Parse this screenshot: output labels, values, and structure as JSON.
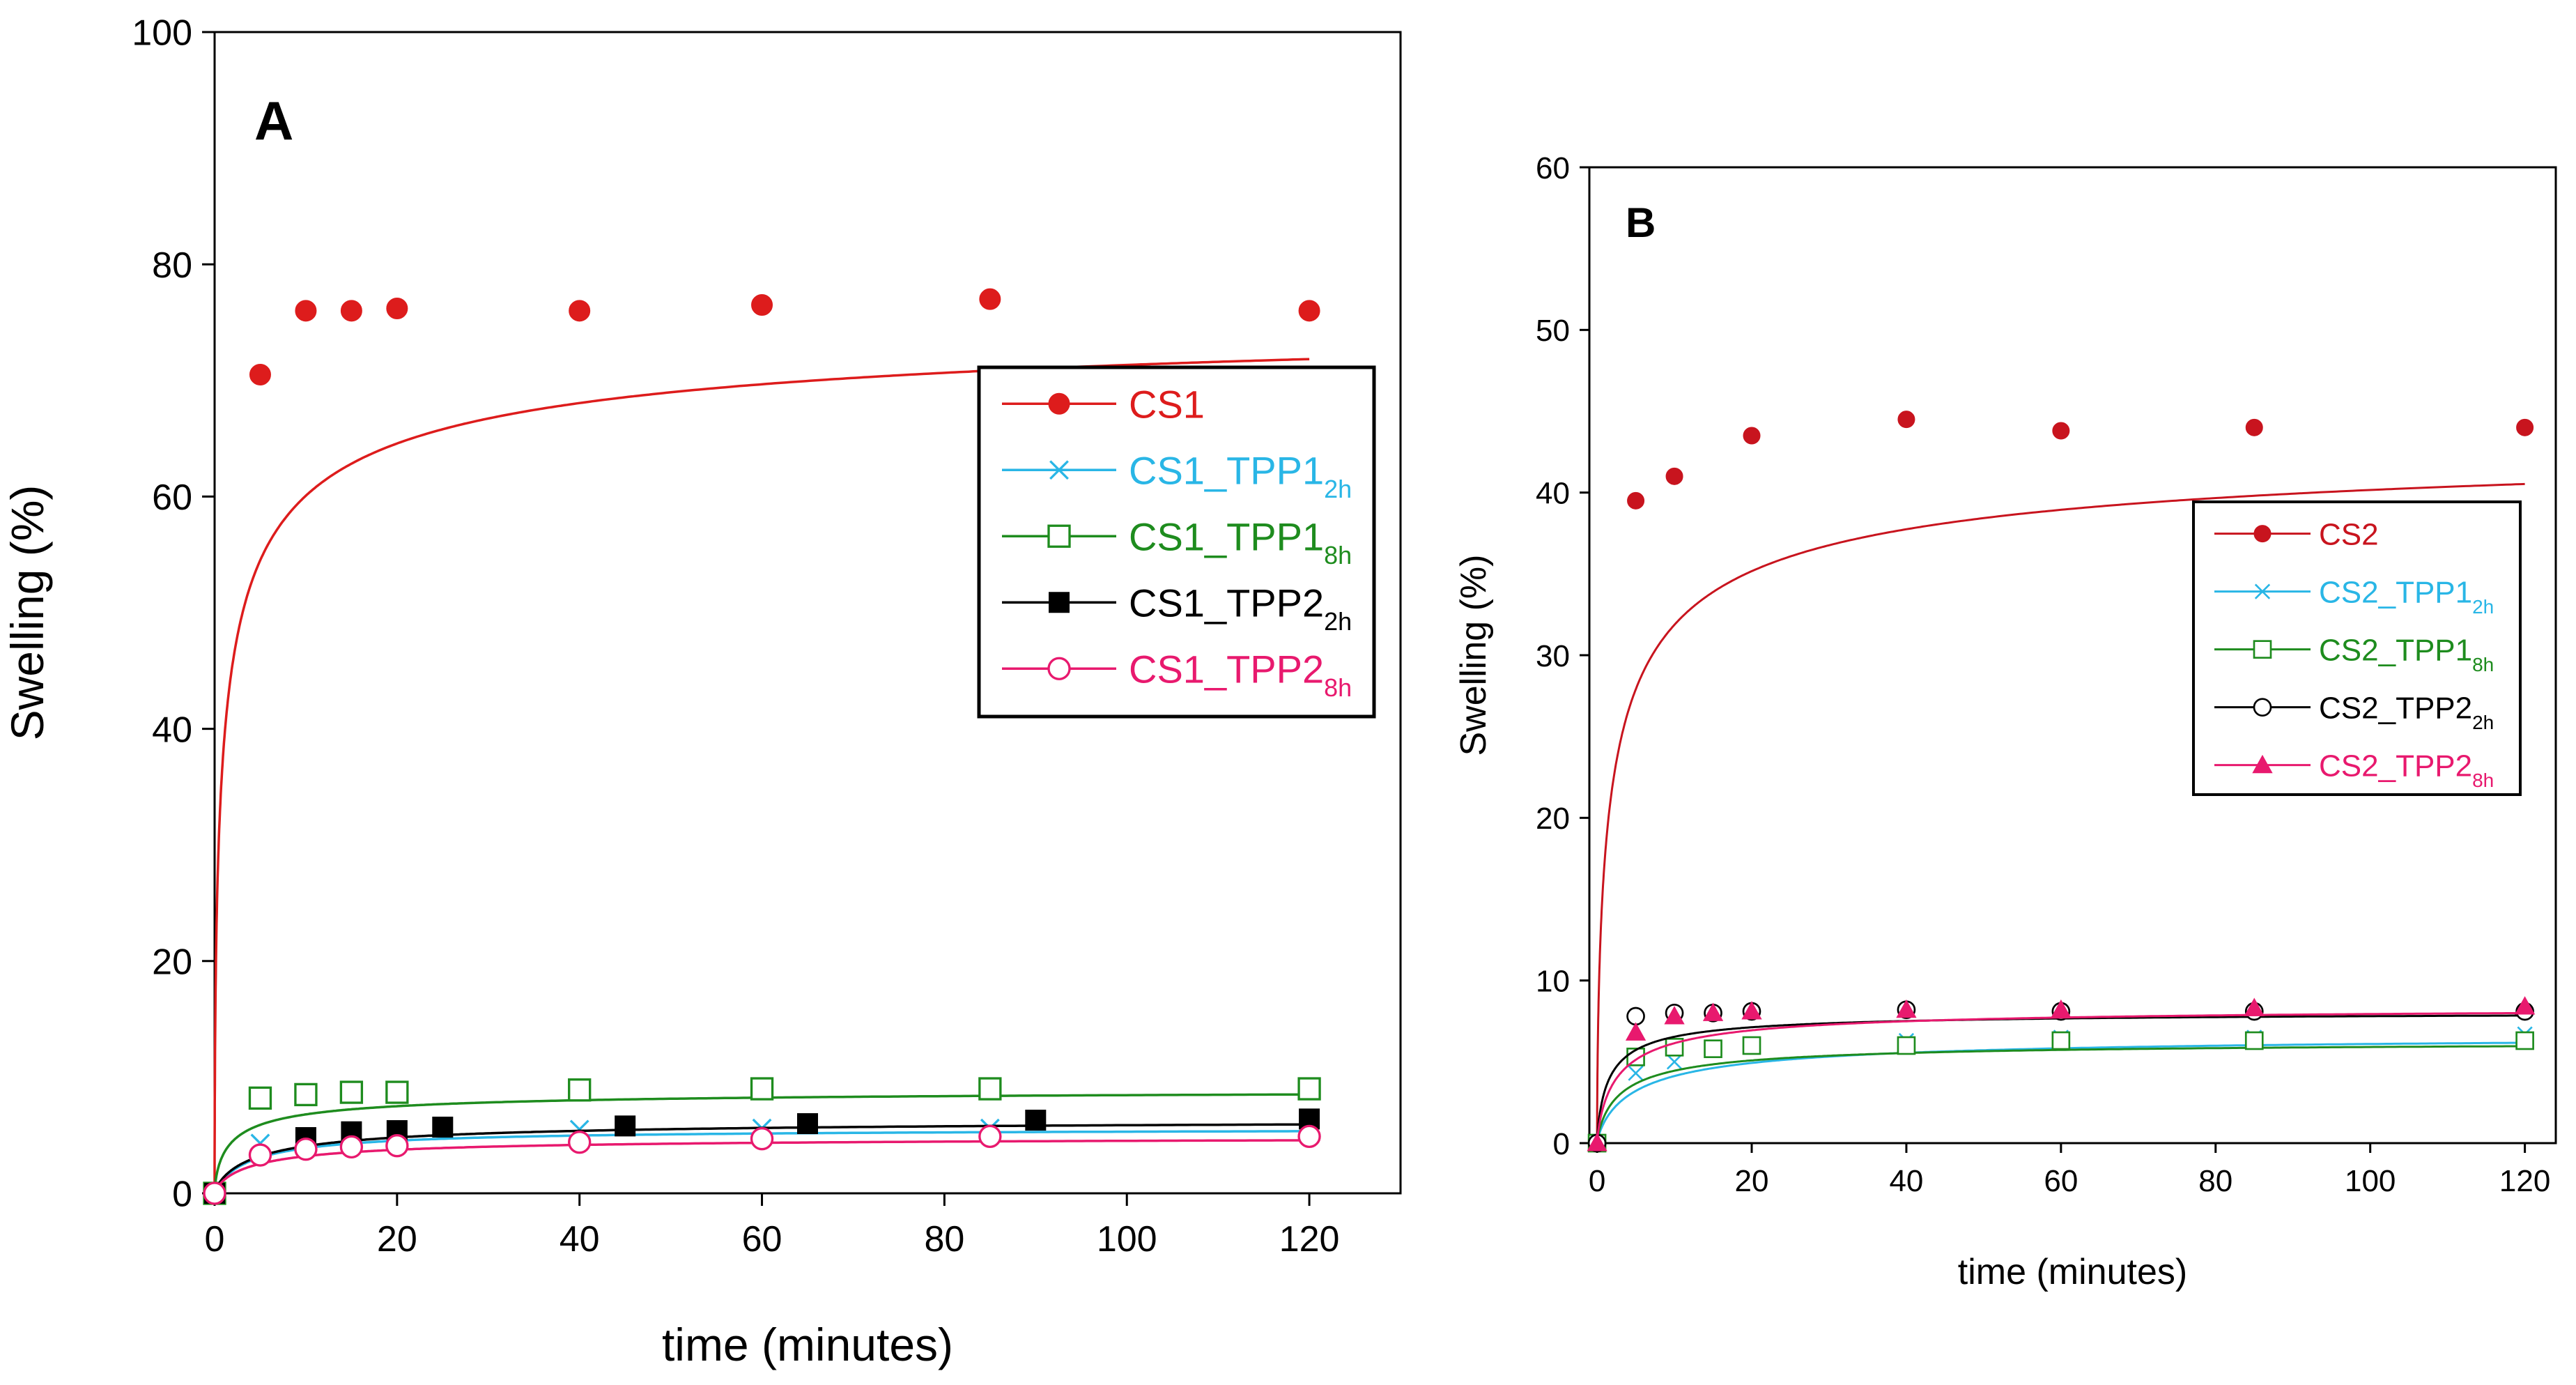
{
  "chart_data": [
    {
      "type": "line",
      "panel_label": "A",
      "xlabel": "time (minutes)",
      "ylabel": "Swelling (%)",
      "xlim": [
        0,
        130
      ],
      "ylim": [
        0,
        100
      ],
      "xticks": [
        0,
        20,
        40,
        60,
        80,
        100,
        120
      ],
      "yticks": [
        0,
        20,
        40,
        60,
        80,
        100
      ],
      "grid": false,
      "legend_position": "right-middle",
      "series": [
        {
          "name": "CS1",
          "name_base": "CS1",
          "name_sub": "",
          "color": "#dd1c1c",
          "marker": "filled-circle",
          "x": [
            0,
            5,
            10,
            15,
            20,
            40,
            60,
            85,
            120
          ],
          "y": [
            0,
            70.5,
            76,
            76,
            76.2,
            76,
            76.5,
            77,
            76
          ],
          "fit": {
            "plateau": 77,
            "k": 1.0,
            "shape": 0.55
          }
        },
        {
          "name": "CS1_TPP1 2h",
          "name_base": "CS1_TPP1",
          "name_sub": "2h",
          "color": "#29b6e6",
          "marker": "x",
          "x": [
            0,
            5,
            10,
            15,
            20,
            40,
            60,
            85,
            120
          ],
          "y": [
            0,
            4.3,
            4.8,
            5.0,
            5.2,
            5.5,
            5.6,
            5.6,
            5.6
          ],
          "fit": {
            "plateau": 5.6,
            "k": 0.25,
            "shape": 0.9
          }
        },
        {
          "name": "CS1_TPP1 8h",
          "name_base": "CS1_TPP1",
          "name_sub": "8h",
          "color": "#1e8c1e",
          "marker": "open-square",
          "x": [
            0,
            5,
            10,
            15,
            20,
            40,
            60,
            85,
            120
          ],
          "y": [
            0,
            8.2,
            8.5,
            8.7,
            8.7,
            8.9,
            9.0,
            9.0,
            9.0
          ],
          "fit": {
            "plateau": 9.0,
            "k": 0.5,
            "shape": 0.7
          }
        },
        {
          "name": "CS1_TPP2 2h",
          "name_base": "CS1_TPP2",
          "name_sub": "2h",
          "color": "#000000",
          "marker": "filled-square",
          "x": [
            0,
            10,
            15,
            20,
            25,
            45,
            65,
            90,
            120
          ],
          "y": [
            0,
            4.8,
            5.3,
            5.4,
            5.7,
            5.8,
            6.0,
            6.3,
            6.4
          ],
          "fit": {
            "plateau": 6.4,
            "k": 0.2,
            "shape": 0.8
          }
        },
        {
          "name": "CS1_TPP2 8h",
          "name_base": "CS1_TPP2",
          "name_sub": "8h",
          "color": "#e8196e",
          "marker": "open-circle",
          "x": [
            0,
            5,
            10,
            15,
            20,
            40,
            60,
            85,
            120
          ],
          "y": [
            0,
            3.3,
            3.8,
            4.0,
            4.1,
            4.4,
            4.7,
            4.9,
            4.9
          ],
          "fit": {
            "plateau": 4.9,
            "k": 0.22,
            "shape": 0.8
          }
        }
      ]
    },
    {
      "type": "line",
      "panel_label": "B",
      "xlabel": "time (minutes)",
      "ylabel": "Swelling (%)",
      "xlim": [
        -1,
        124
      ],
      "ylim": [
        0,
        60
      ],
      "xticks": [
        0,
        20,
        40,
        60,
        80,
        100,
        120
      ],
      "yticks": [
        0,
        10,
        20,
        30,
        40,
        50,
        60
      ],
      "grid": false,
      "legend_position": "right-middle",
      "series": [
        {
          "name": "CS2",
          "name_base": "CS2",
          "name_sub": "",
          "color": "#c8141e",
          "marker": "filled-circle",
          "x": [
            0,
            5,
            10,
            20,
            40,
            60,
            85,
            120
          ],
          "y": [
            0,
            39.5,
            41,
            43.5,
            44.5,
            43.8,
            44,
            44
          ],
          "fit": {
            "plateau": 44,
            "k": 0.5,
            "shape": 0.6
          }
        },
        {
          "name": "CS2_TPP1 2h",
          "name_base": "CS2_TPP1",
          "name_sub": "2h",
          "color": "#29b6e6",
          "marker": "x",
          "x": [
            0,
            5,
            10,
            15,
            20,
            40,
            60,
            85,
            120
          ],
          "y": [
            0,
            4.3,
            5.0,
            5.7,
            6.0,
            6.3,
            6.5,
            6.5,
            6.7
          ],
          "fit": {
            "plateau": 6.7,
            "k": 0.18,
            "shape": 0.8
          }
        },
        {
          "name": "CS2_TPP1 8h",
          "name_base": "CS2_TPP1",
          "name_sub": "8h",
          "color": "#1e8c1e",
          "marker": "open-square",
          "x": [
            0,
            5,
            10,
            15,
            20,
            40,
            60,
            85,
            120
          ],
          "y": [
            0,
            5.3,
            5.9,
            5.8,
            6.0,
            6.0,
            6.3,
            6.3,
            6.3
          ],
          "fit": {
            "plateau": 6.3,
            "k": 0.3,
            "shape": 0.8
          }
        },
        {
          "name": "CS2_TPP2 2h",
          "name_base": "CS2_TPP2",
          "name_sub": "2h",
          "color": "#000000",
          "marker": "open-circle",
          "x": [
            0,
            5,
            10,
            15,
            20,
            40,
            60,
            85,
            120
          ],
          "y": [
            0,
            7.8,
            8.0,
            8.0,
            8.1,
            8.2,
            8.1,
            8.1,
            8.1
          ],
          "fit": {
            "plateau": 8.1,
            "k": 0.6,
            "shape": 0.8
          }
        },
        {
          "name": "CS2_TPP2 8h",
          "name_base": "CS2_TPP2",
          "name_sub": "8h",
          "color": "#e8196e",
          "marker": "filled-triangle",
          "x": [
            0,
            5,
            10,
            15,
            20,
            40,
            60,
            85,
            120
          ],
          "y": [
            0,
            6.8,
            7.8,
            8.0,
            8.1,
            8.2,
            8.2,
            8.3,
            8.4
          ],
          "fit": {
            "plateau": 8.4,
            "k": 0.35,
            "shape": 0.8
          }
        }
      ]
    }
  ]
}
